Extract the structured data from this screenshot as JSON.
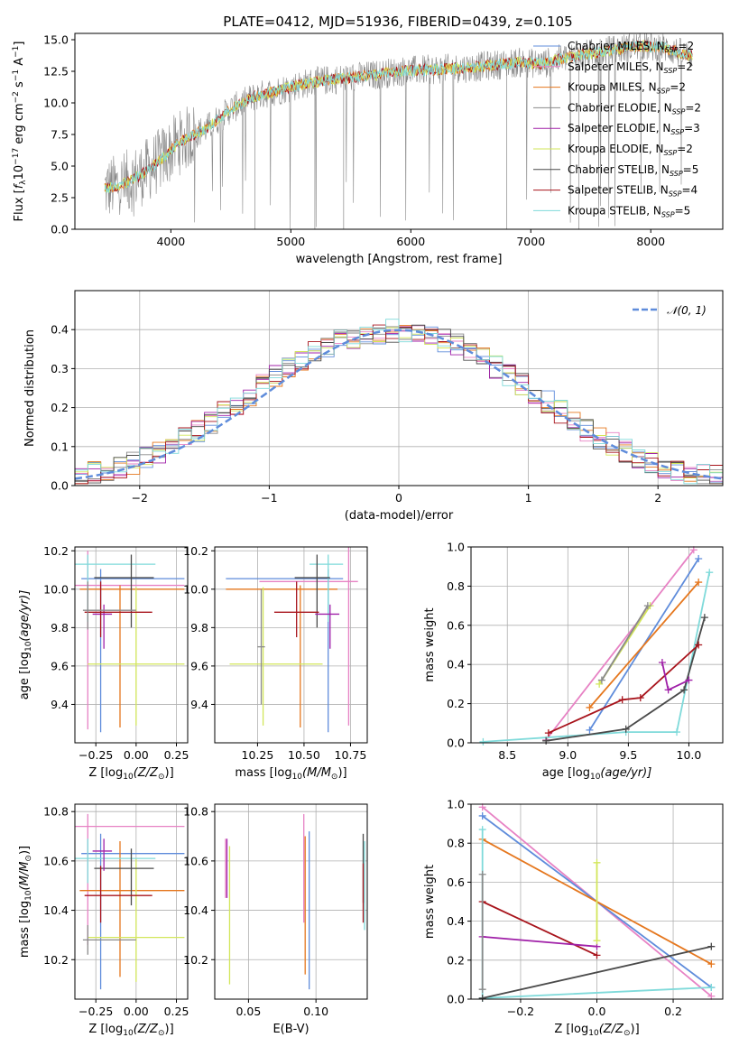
{
  "figure_title": "PLATE=0412, MJD=51936, FIBERID=0439, z=0.105",
  "colors": {
    "chabrier_miles": "#5f8cdb",
    "salpeter_miles": "#e782c4",
    "kroupa_miles": "#e5771e",
    "chabrier_elodie": "#8a8a8a",
    "salpeter_elodie": "#a020a8",
    "kroupa_elodie": "#d2e65a",
    "chabrier_stelib": "#4a4a4a",
    "salpeter_stelib": "#a8141c",
    "kroupa_stelib": "#7fdada",
    "normal": "#5f8cdb"
  },
  "chart_data": [
    {
      "id": "spectrum",
      "type": "line",
      "title": "PLATE=0412, MJD=51936, FIBERID=0439, z=0.105",
      "xlabel": "wavelength [Angstrom, rest frame]",
      "ylabel_parts": [
        "Flux [",
        "f",
        "λ",
        "10",
        "−17",
        " erg cm",
        "−2",
        " s",
        "−1",
        " A",
        "−1",
        "]"
      ],
      "xlim": [
        3200,
        8600
      ],
      "ylim": [
        0,
        15.5
      ],
      "xticks": [
        4000,
        5000,
        6000,
        7000,
        8000
      ],
      "yticks": [
        0.0,
        2.5,
        5.0,
        7.5,
        10.0,
        12.5,
        15.0
      ],
      "grid": false,
      "legend_position": "top-right",
      "legend": [
        {
          "model": "Chabrier MILES",
          "nssp": "2",
          "color": "#5f8cdb"
        },
        {
          "model": "Salpeter MILES",
          "nssp": "2",
          "color": "#e782c4"
        },
        {
          "model": "Kroupa MILES",
          "nssp": "2",
          "color": "#e5771e"
        },
        {
          "model": "Chabrier ELODIE",
          "nssp": "2",
          "color": "#8a8a8a"
        },
        {
          "model": "Salpeter ELODIE",
          "nssp": "3",
          "color": "#a020a8"
        },
        {
          "model": "Kroupa ELODIE",
          "nssp": "2",
          "color": "#d2e65a"
        },
        {
          "model": "Chabrier STELIB",
          "nssp": "5",
          "color": "#4a4a4a"
        },
        {
          "model": "Salpeter STELIB",
          "nssp": "4",
          "color": "#a8141c"
        },
        {
          "model": "Kroupa STELIB",
          "nssp": "5",
          "color": "#7fdada"
        }
      ],
      "legend_subscript": "SSP",
      "continuum": {
        "x": [
          3450,
          3550,
          3650,
          3750,
          3850,
          3950,
          4050,
          4150,
          4300,
          4500,
          4700,
          4900,
          5100,
          5300,
          5500,
          5700,
          5900,
          6100,
          6300,
          6500,
          6700,
          6900,
          7100,
          7300,
          7500,
          7700,
          7900,
          8100,
          8300
        ],
        "y": [
          3.2,
          3.4,
          3.8,
          4.3,
          5.0,
          5.8,
          6.7,
          7.3,
          8.0,
          9.5,
          10.5,
          11.0,
          11.5,
          11.8,
          12.0,
          12.2,
          12.5,
          12.6,
          12.7,
          12.8,
          13.0,
          13.2,
          13.1,
          13.6,
          13.9,
          14.2,
          14.5,
          14.4,
          13.8
        ]
      }
    },
    {
      "id": "residuals",
      "type": "line",
      "xlabel": "(data-model)/error",
      "ylabel": "Normed distribution",
      "xlim": [
        -2.5,
        2.5
      ],
      "ylim": [
        0,
        0.5
      ],
      "xticks": [
        -2,
        -1,
        0,
        1,
        2
      ],
      "yticks": [
        0.0,
        0.1,
        0.2,
        0.3,
        0.4
      ],
      "grid": true,
      "legend_position": "top-right",
      "legend": [
        {
          "label": "𝒩(0, 1)",
          "style": "dashed",
          "color": "#5f8cdb"
        }
      ],
      "histogram_bin_width": 0.1,
      "histogram_envelope": {
        "x": [
          -2.5,
          -2.0,
          -1.5,
          -1.0,
          -0.5,
          0.0,
          0.5,
          1.0,
          1.5,
          2.0,
          2.5
        ],
        "y": [
          0.02,
          0.06,
          0.15,
          0.27,
          0.37,
          0.4,
          0.36,
          0.25,
          0.13,
          0.05,
          0.02
        ]
      }
    },
    {
      "id": "age-vs-Z",
      "type": "scatter",
      "xlabel_parts": [
        "Z [log",
        "10",
        "(Z/Z",
        "⊙",
        ")]"
      ],
      "ylabel_parts": [
        "age  [log",
        "10",
        "(age/yr)]"
      ],
      "xlim": [
        -0.38,
        0.32
      ],
      "ylim": [
        9.2,
        10.22
      ],
      "xticks": [
        -0.25,
        0.0,
        0.25
      ],
      "xtick_labels": [
        "−0.25",
        "0.00",
        "0.25"
      ],
      "yticks": [
        9.4,
        9.6,
        9.8,
        10.0,
        10.2
      ],
      "grid": true,
      "errorbars": [
        {
          "color": "#5f8cdb",
          "x": -0.22,
          "xerr": [
            0.12,
            0.52
          ],
          "y": 10.055,
          "yerr": [
            0.8,
            0.05
          ]
        },
        {
          "color": "#e782c4",
          "x": -0.3,
          "xerr": [
            0.1,
            0.6
          ],
          "y": 10.02,
          "yerr": [
            0.75,
            0.18
          ]
        },
        {
          "color": "#e5771e",
          "x": -0.1,
          "xerr": [
            0.25,
            0.4
          ],
          "y": 10.0,
          "yerr": [
            0.72,
            0.02
          ]
        },
        {
          "color": "#d2e65a",
          "x": 0.0,
          "xerr": [
            0.3,
            0.3
          ],
          "y": 9.61,
          "yerr": [
            0.32,
            0.4
          ]
        },
        {
          "color": "#7fdada",
          "x": -0.3,
          "xerr": [
            0.12,
            0.42
          ],
          "y": 10.13,
          "yerr": [
            0.3,
            0.05
          ]
        },
        {
          "color": "#4a4a4a",
          "x": -0.03,
          "xerr": [
            0.23,
            0.14
          ],
          "y": 10.06,
          "yerr": [
            0.26,
            0.12
          ]
        },
        {
          "color": "#a020a8",
          "x": -0.2,
          "xerr": [
            0.07,
            0.05
          ],
          "y": 9.87,
          "yerr": [
            0.18,
            0.05
          ]
        },
        {
          "color": "#a8141c",
          "x": -0.22,
          "xerr": [
            0.1,
            0.32
          ],
          "y": 9.88,
          "yerr": [
            0.13,
            0.16
          ]
        },
        {
          "color": "#8a8a8a",
          "x": -0.3,
          "xerr": [
            0.03,
            0.3
          ],
          "y": 9.89,
          "yerr": [
            0.1,
            0.15
          ]
        }
      ]
    },
    {
      "id": "age-vs-mass",
      "type": "scatter",
      "xlabel_parts": [
        "mass [log",
        "10",
        "(M/M",
        "⊙",
        ")]"
      ],
      "ylabel": "",
      "xlim": [
        10.02,
        10.84
      ],
      "ylim": [
        9.2,
        10.22
      ],
      "xticks": [
        10.25,
        10.5,
        10.75
      ],
      "xtick_labels": [
        "10.25",
        "10.50",
        "10.75"
      ],
      "yticks": [
        9.4,
        9.6,
        9.8,
        10.0,
        10.2
      ],
      "grid": true,
      "errorbars": [
        {
          "color": "#5f8cdb",
          "x": 10.63,
          "xerr": [
            0.55,
            0.08
          ],
          "y": 10.055,
          "yerr": [
            0.8,
            0.05
          ]
        },
        {
          "color": "#e782c4",
          "x": 10.74,
          "xerr": [
            0.48,
            0.05
          ],
          "y": 10.04,
          "yerr": [
            0.75,
            0.18
          ]
        },
        {
          "color": "#e5771e",
          "x": 10.48,
          "xerr": [
            0.4,
            0.2
          ],
          "y": 10.0,
          "yerr": [
            0.72,
            0.02
          ]
        },
        {
          "color": "#d2e65a",
          "x": 10.28,
          "xerr": [
            0.18,
            0.32
          ],
          "y": 9.61,
          "yerr": [
            0.32,
            0.4
          ]
        },
        {
          "color": "#7fdada",
          "x": 10.63,
          "xerr": [
            0.1,
            0.08
          ],
          "y": 10.13,
          "yerr": [
            0.3,
            0.05
          ]
        },
        {
          "color": "#4a4a4a",
          "x": 10.57,
          "xerr": [
            0.12,
            0.07
          ],
          "y": 10.06,
          "yerr": [
            0.26,
            0.12
          ]
        },
        {
          "color": "#a020a8",
          "x": 10.64,
          "xerr": [
            0.08,
            0.05
          ],
          "y": 9.87,
          "yerr": [
            0.18,
            0.05
          ]
        },
        {
          "color": "#a8141c",
          "x": 10.46,
          "xerr": [
            0.12,
            0.12
          ],
          "y": 9.88,
          "yerr": [
            0.13,
            0.16
          ]
        },
        {
          "color": "#8a8a8a",
          "x": 10.27,
          "xerr": [
            0.02,
            0.02
          ],
          "y": 9.7,
          "yerr": [
            0.3,
            0.3
          ]
        }
      ]
    },
    {
      "id": "weight-vs-age",
      "type": "line",
      "xlabel_parts": [
        "age  [log",
        "10",
        "(age/yr)]"
      ],
      "ylabel": "mass weight",
      "xlim": [
        8.2,
        10.28
      ],
      "ylim": [
        0,
        1.0
      ],
      "xticks": [
        8.5,
        9.0,
        9.5,
        10.0
      ],
      "xtick_labels": [
        "8.5",
        "9.0",
        "9.5",
        "10.0"
      ],
      "yticks": [
        0.0,
        0.2,
        0.4,
        0.6,
        0.8,
        1.0
      ],
      "grid": true,
      "series": [
        {
          "color": "#e782c4",
          "x": [
            8.82,
            10.04
          ],
          "y": [
            0.015,
            0.985
          ]
        },
        {
          "color": "#5f8cdb",
          "x": [
            9.18,
            10.08
          ],
          "y": [
            0.065,
            0.94
          ]
        },
        {
          "color": "#e5771e",
          "x": [
            9.18,
            10.08
          ],
          "y": [
            0.18,
            0.82
          ]
        },
        {
          "color": "#d2e65a",
          "x": [
            9.26,
            9.68
          ],
          "y": [
            0.3,
            0.7
          ]
        },
        {
          "color": "#8a8a8a",
          "x": [
            9.28,
            9.66
          ],
          "y": [
            0.32,
            0.7
          ]
        },
        {
          "color": "#7fdada",
          "x": [
            8.3,
            9.48,
            9.9,
            10.17
          ],
          "y": [
            0.005,
            0.055,
            0.055,
            0.87
          ]
        },
        {
          "color": "#4a4a4a",
          "x": [
            8.82,
            9.48,
            9.96,
            10.13
          ],
          "y": [
            0.01,
            0.07,
            0.27,
            0.64
          ]
        },
        {
          "color": "#a8141c",
          "x": [
            8.84,
            9.45,
            9.6,
            10.08
          ],
          "y": [
            0.05,
            0.22,
            0.23,
            0.5
          ]
        },
        {
          "color": "#a020a8",
          "x": [
            9.78,
            9.83,
            10.0
          ],
          "y": [
            0.41,
            0.27,
            0.32
          ]
        }
      ]
    },
    {
      "id": "mass-vs-Z",
      "type": "scatter",
      "xlabel_parts": [
        "Z [log",
        "10",
        "(Z/Z",
        "⊙",
        ")]"
      ],
      "ylabel_parts": [
        "mass [log",
        "10",
        "(M/M",
        "⊙",
        ")]"
      ],
      "xlim": [
        -0.38,
        0.32
      ],
      "ylim": [
        10.04,
        10.83
      ],
      "xticks": [
        -0.25,
        0.0,
        0.25
      ],
      "xtick_labels": [
        "−0.25",
        "0.00",
        "0.25"
      ],
      "yticks": [
        10.2,
        10.4,
        10.6,
        10.8
      ],
      "grid": true,
      "errorbars": [
        {
          "color": "#5f8cdb",
          "x": -0.22,
          "xerr": [
            0.12,
            0.52
          ],
          "y": 10.63,
          "yerr": [
            0.55,
            0.08
          ]
        },
        {
          "color": "#e782c4",
          "x": -0.3,
          "xerr": [
            0.1,
            0.6
          ],
          "y": 10.74,
          "yerr": [
            0.48,
            0.05
          ]
        },
        {
          "color": "#e5771e",
          "x": -0.1,
          "xerr": [
            0.25,
            0.4
          ],
          "y": 10.48,
          "yerr": [
            0.35,
            0.2
          ]
        },
        {
          "color": "#d2e65a",
          "x": 0.0,
          "xerr": [
            0.3,
            0.3
          ],
          "y": 10.29,
          "yerr": [
            0.18,
            0.32
          ]
        },
        {
          "color": "#7fdada",
          "x": -0.3,
          "xerr": [
            0.12,
            0.42
          ],
          "y": 10.61,
          "yerr": [
            0.1,
            0.08
          ]
        },
        {
          "color": "#4a4a4a",
          "x": -0.03,
          "xerr": [
            0.23,
            0.14
          ],
          "y": 10.57,
          "yerr": [
            0.15,
            0.08
          ]
        },
        {
          "color": "#a020a8",
          "x": -0.2,
          "xerr": [
            0.07,
            0.05
          ],
          "y": 10.64,
          "yerr": [
            0.08,
            0.05
          ]
        },
        {
          "color": "#a8141c",
          "x": -0.22,
          "xerr": [
            0.1,
            0.32
          ],
          "y": 10.46,
          "yerr": [
            0.11,
            0.12
          ]
        },
        {
          "color": "#8a8a8a",
          "x": -0.3,
          "xerr": [
            0.03,
            0.3
          ],
          "y": 10.28,
          "yerr": [
            0.06,
            0.06
          ]
        }
      ]
    },
    {
      "id": "mass-vs-EBV",
      "type": "scatter",
      "xlabel": "E(B-V)",
      "ylabel": "",
      "xlim": [
        0.025,
        0.138
      ],
      "ylim": [
        10.04,
        10.83
      ],
      "xticks": [
        0.05,
        0.1
      ],
      "xtick_labels": [
        "0.05",
        "0.10"
      ],
      "yticks": [
        10.2,
        10.4,
        10.6,
        10.8
      ],
      "grid": true,
      "errorbars": [
        {
          "color": "#e782c4",
          "x": 0.033,
          "xerr": [
            0,
            0
          ],
          "y": 10.57,
          "yerr": [
            0.12,
            0.12
          ]
        },
        {
          "color": "#a020a8",
          "x": 0.034,
          "xerr": [
            0,
            0
          ],
          "y": 10.57,
          "yerr": [
            0.12,
            0.12
          ]
        },
        {
          "color": "#d2e65a",
          "x": 0.036,
          "xerr": [
            0,
            0
          ],
          "y": 10.38,
          "yerr": [
            0.28,
            0.28
          ]
        },
        {
          "color": "#e782c4",
          "x": 0.091,
          "xerr": [
            0,
            0
          ],
          "y": 10.57,
          "yerr": [
            0.22,
            0.22
          ]
        },
        {
          "color": "#e5771e",
          "x": 0.092,
          "xerr": [
            0,
            0
          ],
          "y": 10.42,
          "yerr": [
            0.28,
            0.28
          ]
        },
        {
          "color": "#5f8cdb",
          "x": 0.095,
          "xerr": [
            0,
            0
          ],
          "y": 10.4,
          "yerr": [
            0.32,
            0.32
          ]
        },
        {
          "color": "#4a4a4a",
          "x": 0.135,
          "xerr": [
            0,
            0
          ],
          "y": 10.57,
          "yerr": [
            0.14,
            0.14
          ]
        },
        {
          "color": "#a8141c",
          "x": 0.135,
          "xerr": [
            0,
            0
          ],
          "y": 10.47,
          "yerr": [
            0.12,
            0.12
          ]
        },
        {
          "color": "#7fdada",
          "x": 0.136,
          "xerr": [
            0,
            0
          ],
          "y": 10.5,
          "yerr": [
            0.18,
            0.18
          ]
        }
      ]
    },
    {
      "id": "weight-vs-Z",
      "type": "line",
      "xlabel_parts": [
        "Z [log",
        "10",
        "(Z/Z",
        "⊙",
        ")]"
      ],
      "ylabel": "mass weight",
      "xlim": [
        -0.33,
        0.33
      ],
      "ylim": [
        0,
        1.0
      ],
      "xticks": [
        -0.2,
        0.0,
        0.2
      ],
      "xtick_labels": [
        "−0.2",
        "0.0",
        "0.2"
      ],
      "yticks": [
        0.0,
        0.2,
        0.4,
        0.6,
        0.8,
        1.0
      ],
      "grid": true,
      "series": [
        {
          "color": "#e782c4",
          "x": [
            -0.3,
            0.3
          ],
          "y": [
            0.985,
            0.015
          ]
        },
        {
          "color": "#5f8cdb",
          "x": [
            -0.3,
            0.3
          ],
          "y": [
            0.94,
            0.06
          ]
        },
        {
          "color": "#e5771e",
          "x": [
            -0.3,
            0.3
          ],
          "y": [
            0.82,
            0.18
          ]
        },
        {
          "color": "#7fdada",
          "x": [
            -0.3,
            -0.3,
            0.3
          ],
          "y": [
            0.87,
            0.005,
            0.06
          ]
        },
        {
          "color": "#4a4a4a",
          "x": [
            -0.3,
            0.3
          ],
          "y": [
            0.005,
            0.27
          ]
        },
        {
          "color": "#a8141c",
          "x": [
            -0.3,
            0.0
          ],
          "y": [
            0.5,
            0.225
          ]
        },
        {
          "color": "#a020a8",
          "x": [
            -0.3,
            0.0
          ],
          "y": [
            0.32,
            0.27
          ]
        },
        {
          "color": "#d2e65a",
          "x": [
            0.0,
            0.0
          ],
          "y": [
            0.3,
            0.7
          ]
        },
        {
          "color": "#8a8a8a",
          "x": [
            -0.3,
            -0.3
          ],
          "y": [
            0.05,
            0.64
          ]
        }
      ]
    }
  ]
}
